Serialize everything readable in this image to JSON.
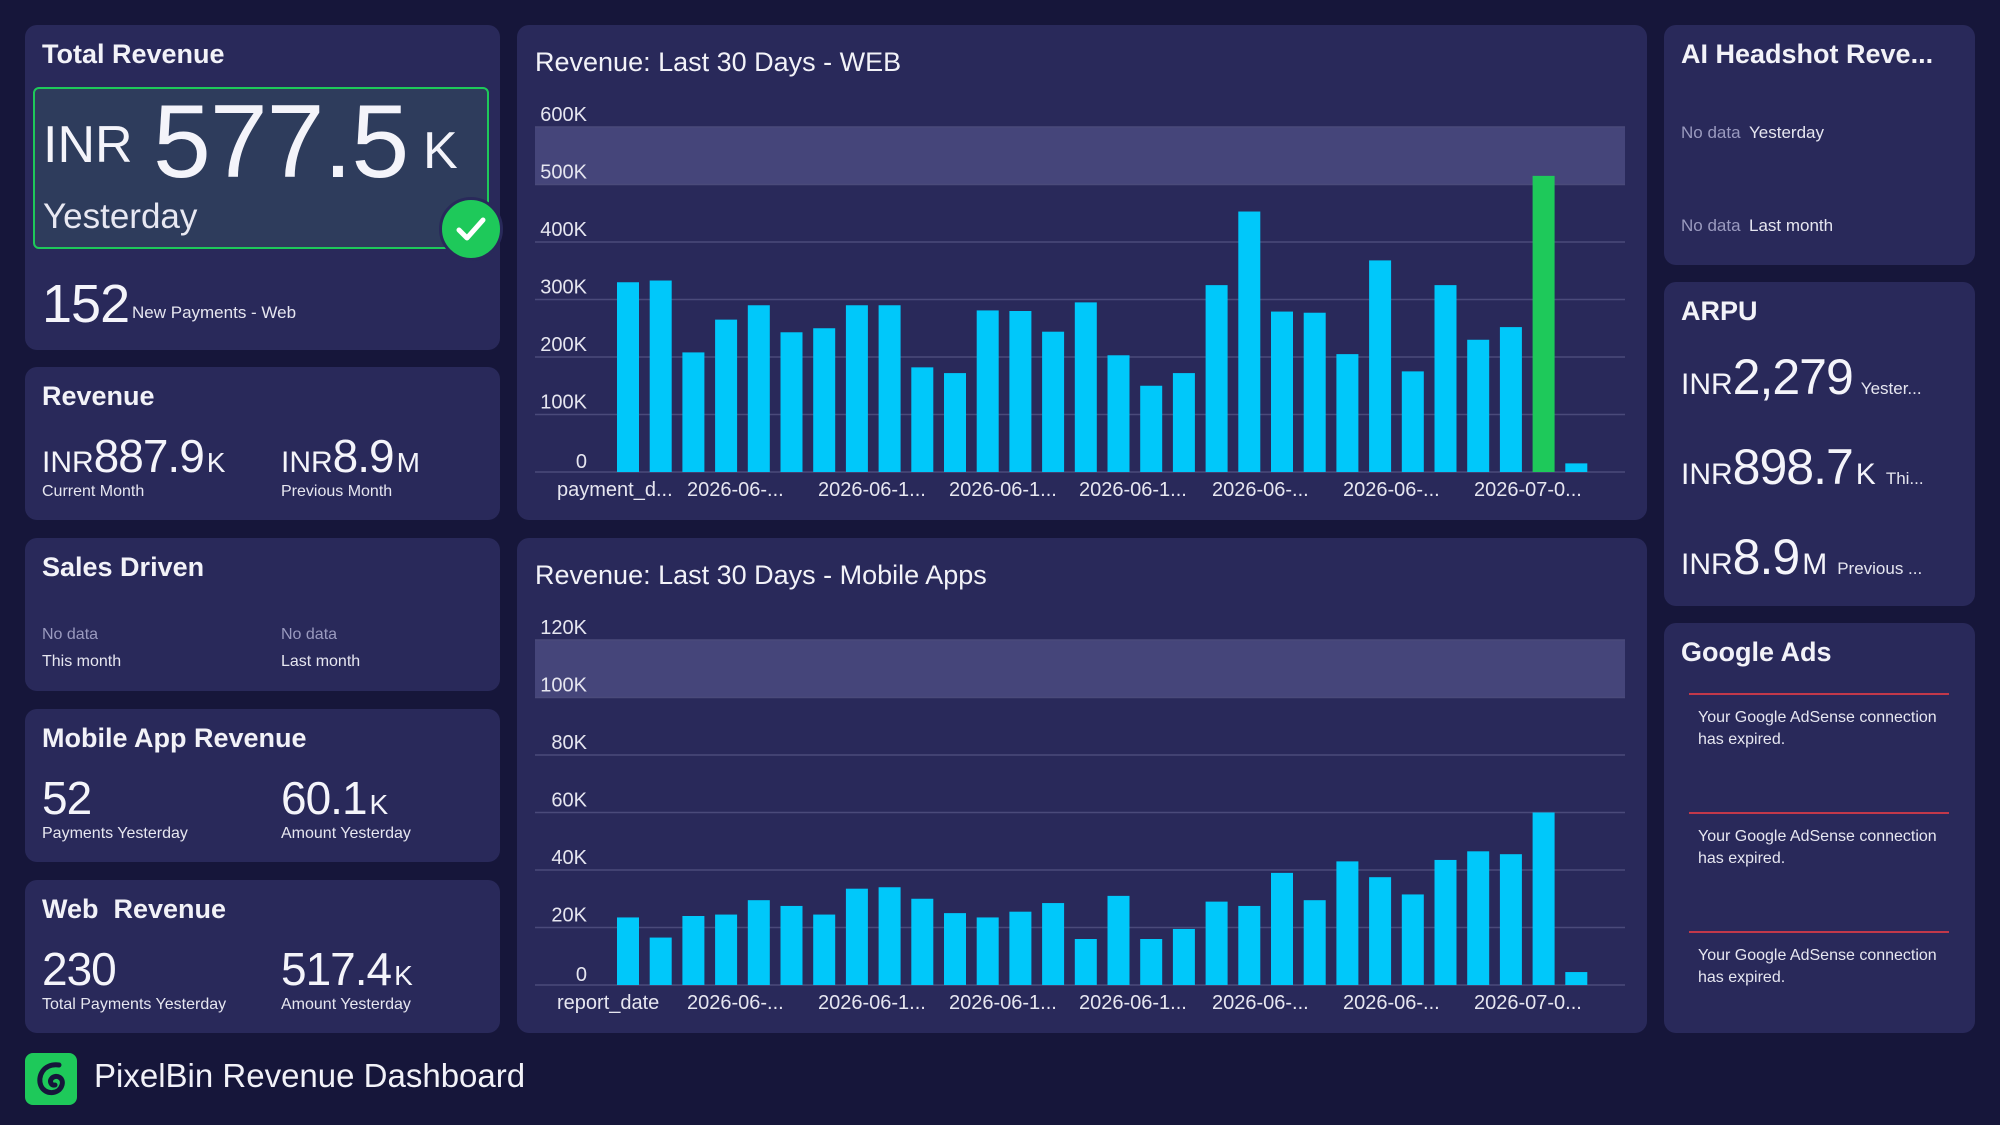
{
  "total_revenue": {
    "title": "Total Revenue",
    "currency": "INR",
    "value": "577.5",
    "unit": "K",
    "period": "Yesterday",
    "payments_count": "152",
    "payments_label": "New Payments - Web"
  },
  "revenue": {
    "title": "Revenue",
    "current": {
      "currency": "INR",
      "value": "887.9",
      "unit": "K",
      "label": "Current Month"
    },
    "previous": {
      "currency": "INR",
      "value": "8.9",
      "unit": "M",
      "label": "Previous Month"
    }
  },
  "sales_driven": {
    "title": "Sales Driven",
    "this_month": {
      "status": "No data",
      "label": "This month"
    },
    "last_month": {
      "status": "No data",
      "label": "Last month"
    }
  },
  "mobile_app_revenue": {
    "title": "Mobile App Revenue",
    "payments": {
      "value": "52",
      "label": "Payments Yesterday"
    },
    "amount": {
      "value": "60.1",
      "unit": "K",
      "label": "Amount Yesterday"
    }
  },
  "web_revenue": {
    "title": "Web  Revenue",
    "payments": {
      "value": "230",
      "label": "Total Payments Yesterday"
    },
    "amount": {
      "value": "517.4",
      "unit": "K",
      "label": "Amount Yesterday"
    }
  },
  "ai_headshot": {
    "title": "AI Headshot Reve...",
    "yesterday": {
      "status": "No data",
      "label": "Yesterday"
    },
    "last_month": {
      "status": "No data",
      "label": "Last month"
    }
  },
  "arpu": {
    "title": "ARPU",
    "rows": [
      {
        "currency": "INR",
        "value": "2,279",
        "unit": "",
        "label": "Yester..."
      },
      {
        "currency": "INR",
        "value": "898.7",
        "unit": "K",
        "label": "Thi..."
      },
      {
        "currency": "INR",
        "value": "8.9",
        "unit": "M",
        "label": "Previous ..."
      }
    ]
  },
  "google_ads": {
    "title": "Google Ads",
    "messages": [
      "Your Google AdSense connection has expired.",
      "Your Google AdSense connection has expired.",
      "Your Google AdSense connection has expired."
    ]
  },
  "footer": {
    "title": "PixelBin Revenue Dashboard",
    "logo_icon": "pixelbin-logo-icon"
  },
  "colors": {
    "bar": "#00c8fa",
    "bar_highlight": "#1ec95a",
    "grid": "#4a4a7a",
    "band": "#45457a",
    "card": "#29295a",
    "background": "#16163a",
    "check": "#1ec95a",
    "alert_line": "#c2384a"
  },
  "chart_data": [
    {
      "type": "bar",
      "title": "Revenue: Last 30 Days - WEB",
      "ylim": [
        0,
        600000
      ],
      "yticks": [
        0,
        100000,
        200000,
        300000,
        400000,
        500000,
        600000
      ],
      "ytick_labels": [
        "0",
        "100K",
        "200K",
        "300K",
        "400K",
        "500K",
        "600K"
      ],
      "band": [
        500000,
        600000
      ],
      "xtick_labels": [
        "payment_d...",
        "2026-06-...",
        "2026-06-1...",
        "2026-06-1...",
        "2026-06-1...",
        "2026-06-...",
        "2026-06-...",
        "2026-07-0..."
      ],
      "values": [
        330000,
        333000,
        208000,
        265000,
        290000,
        243000,
        250000,
        290000,
        290000,
        182000,
        172000,
        281000,
        280000,
        244000,
        295000,
        203000,
        150000,
        172000,
        325000,
        453000,
        279000,
        277000,
        205000,
        368000,
        175000,
        325000,
        230000,
        252000,
        515000,
        15000
      ],
      "highlight_index": 28
    },
    {
      "type": "bar",
      "title": "Revenue: Last 30 Days - Mobile Apps",
      "ylim": [
        0,
        120000
      ],
      "yticks": [
        0,
        20000,
        40000,
        60000,
        80000,
        100000,
        120000
      ],
      "ytick_labels": [
        "0",
        "20K",
        "40K",
        "60K",
        "80K",
        "100K",
        "120K"
      ],
      "band": [
        100000,
        120000
      ],
      "xtick_labels": [
        "report_date",
        "2026-06-...",
        "2026-06-1...",
        "2026-06-1...",
        "2026-06-1...",
        "2026-06-...",
        "2026-06-...",
        "2026-07-0..."
      ],
      "values": [
        23500,
        16500,
        24000,
        24500,
        29500,
        27500,
        24500,
        33500,
        34000,
        30000,
        25000,
        23500,
        25500,
        28500,
        16000,
        31000,
        16000,
        19500,
        29000,
        27500,
        39000,
        29500,
        43000,
        37500,
        31500,
        43500,
        46500,
        45500,
        60000,
        4500
      ],
      "highlight_index": -1
    }
  ]
}
